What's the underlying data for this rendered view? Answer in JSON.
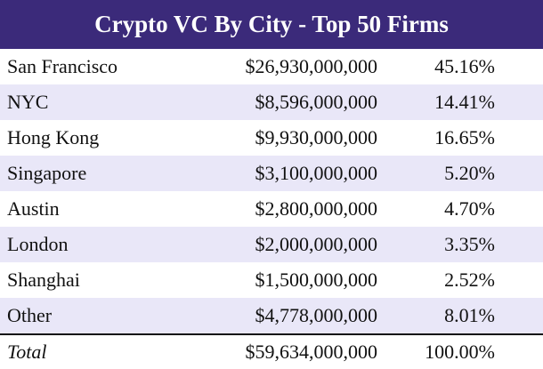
{
  "header": {
    "title": "Crypto VC By City - Top 50 Firms"
  },
  "table": {
    "rows": [
      [
        "San Francisco",
        "$26,930,000,000",
        "45.16%"
      ],
      [
        "NYC",
        "$8,596,000,000",
        "14.41%"
      ],
      [
        "Hong Kong",
        "$9,930,000,000",
        "16.65%"
      ],
      [
        "Singapore",
        "$3,100,000,000",
        "5.20%"
      ],
      [
        "Austin",
        "$2,800,000,000",
        "4.70%"
      ],
      [
        "London",
        "$2,000,000,000",
        "3.35%"
      ],
      [
        "Shanghai",
        "$1,500,000,000",
        "2.52%"
      ],
      [
        "Other",
        "$4,778,000,000",
        "8.01%"
      ]
    ],
    "total": [
      "Total",
      "$59,634,000,000",
      "100.00%"
    ]
  }
}
